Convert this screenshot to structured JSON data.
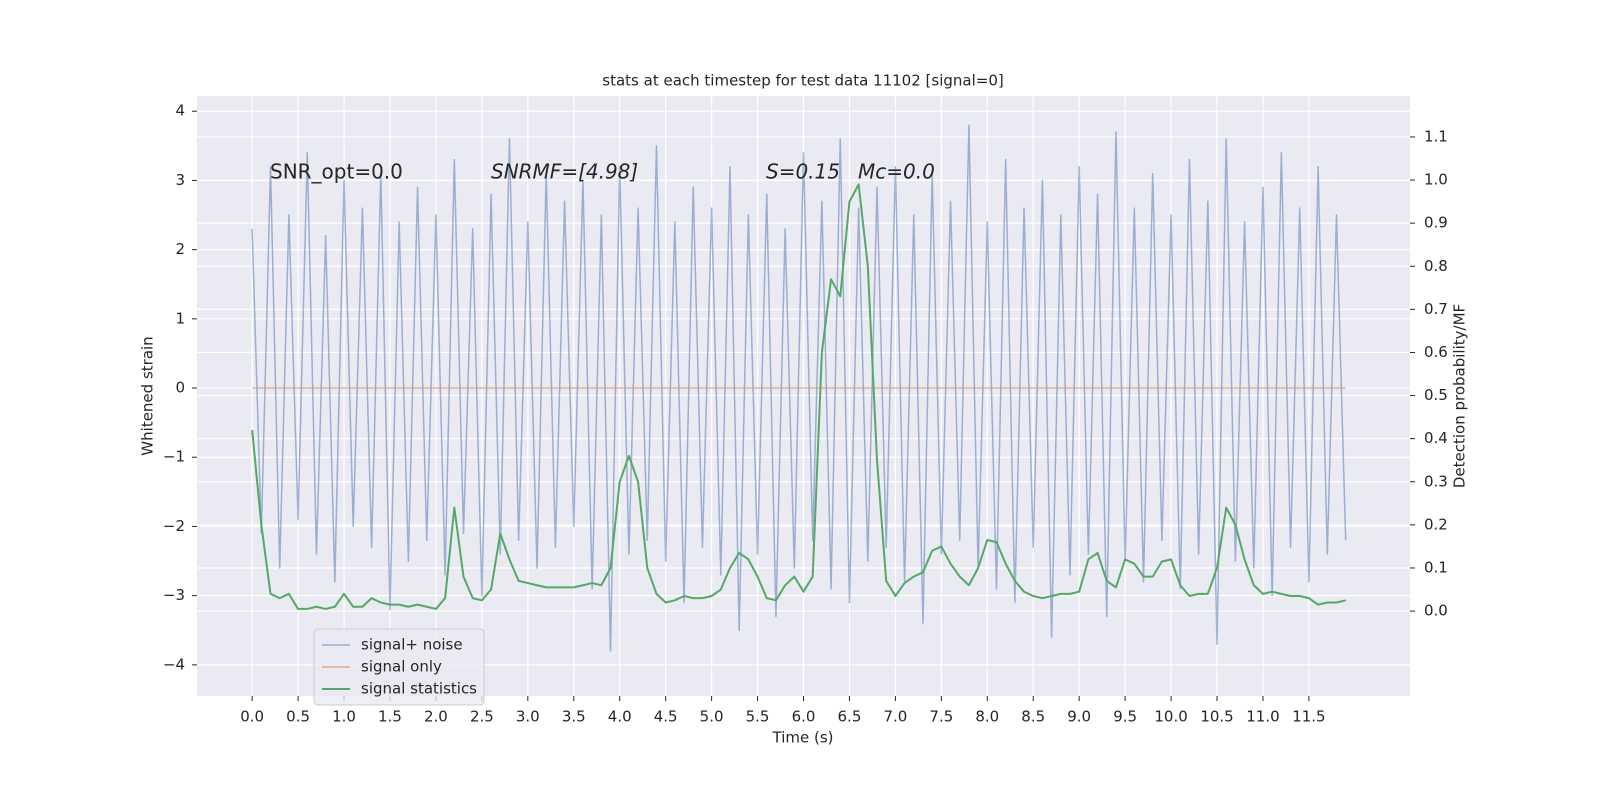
{
  "chart_data": {
    "type": "line",
    "title": "stats at each timestep for test data 11102 [signal=0]",
    "xlabel": "Time (s)",
    "ylabel": "Whitened strain",
    "y2label": "Detection probability/MF",
    "annotations": [
      "SNR_opt=0.0",
      "SNRMF=[4.98]",
      "S=0.15",
      "Mc=0.0"
    ],
    "x": [
      0.0,
      0.1,
      0.2,
      0.3,
      0.4,
      0.5,
      0.6,
      0.7,
      0.8,
      0.9,
      1.0,
      1.1,
      1.2,
      1.3,
      1.4,
      1.5,
      1.6,
      1.7,
      1.8,
      1.9,
      2.0,
      2.1,
      2.2,
      2.3,
      2.4,
      2.5,
      2.6,
      2.7,
      2.8,
      2.9,
      3.0,
      3.1,
      3.2,
      3.3,
      3.4,
      3.5,
      3.6,
      3.7,
      3.8,
      3.9,
      4.0,
      4.1,
      4.2,
      4.3,
      4.4,
      4.5,
      4.6,
      4.7,
      4.8,
      4.9,
      5.0,
      5.1,
      5.2,
      5.3,
      5.4,
      5.5,
      5.6,
      5.7,
      5.8,
      5.9,
      6.0,
      6.1,
      6.2,
      6.3,
      6.4,
      6.5,
      6.6,
      6.7,
      6.8,
      6.9,
      7.0,
      7.1,
      7.2,
      7.3,
      7.4,
      7.5,
      7.6,
      7.7,
      7.8,
      7.9,
      8.0,
      8.1,
      8.2,
      8.3,
      8.4,
      8.5,
      8.6,
      8.7,
      8.8,
      8.9,
      9.0,
      9.1,
      9.2,
      9.3,
      9.4,
      9.5,
      9.6,
      9.7,
      9.8,
      9.9,
      10.0,
      10.1,
      10.2,
      10.3,
      10.4,
      10.5,
      10.6,
      10.7,
      10.8,
      10.9,
      11.0,
      11.1,
      11.2,
      11.3,
      11.4,
      11.5,
      11.6,
      11.7,
      11.8,
      11.9
    ],
    "series": [
      {
        "name": "signal+ noise",
        "color": "#4c72b0",
        "axis": "y",
        "values": [
          2.3,
          -2.1,
          3.2,
          -2.6,
          2.5,
          -1.9,
          3.4,
          -2.4,
          2.2,
          -2.8,
          3.0,
          -2.0,
          2.6,
          -2.3,
          3.1,
          -3.2,
          2.4,
          -2.5,
          2.9,
          -2.2,
          2.5,
          -2.7,
          3.3,
          -2.1,
          2.3,
          -3.0,
          2.8,
          -2.4,
          3.6,
          -2.2,
          2.4,
          -2.6,
          3.1,
          -2.3,
          2.7,
          -2.0,
          3.0,
          -2.9,
          2.5,
          -3.8,
          3.2,
          -2.4,
          2.6,
          -2.2,
          3.5,
          -2.5,
          2.4,
          -3.1,
          2.9,
          -2.3,
          2.6,
          -2.7,
          3.2,
          -3.5,
          2.5,
          -2.4,
          2.8,
          -3.3,
          2.3,
          -2.6,
          3.4,
          -2.2,
          2.7,
          -2.9,
          3.6,
          -3.1,
          2.6,
          -2.5,
          2.9,
          -2.3,
          3.2,
          -2.8,
          2.5,
          -3.4,
          3.1,
          -2.4,
          2.7,
          -2.2,
          3.8,
          -2.6,
          2.4,
          -2.9,
          3.3,
          -3.1,
          2.6,
          -2.3,
          3.0,
          -3.6,
          2.5,
          -2.7,
          3.2,
          -2.4,
          2.8,
          -3.3,
          3.7,
          -2.5,
          2.6,
          -2.8,
          3.1,
          -2.2,
          2.5,
          -2.9,
          3.3,
          -2.4,
          2.7,
          -3.7,
          3.6,
          -2.5,
          2.4,
          -2.6,
          2.9,
          -3.0,
          3.4,
          -2.3,
          2.6,
          -2.8,
          3.2,
          -2.4,
          2.5,
          -2.2
        ]
      },
      {
        "name": "signal only",
        "color": "#dd8452",
        "axis": "y",
        "x": [
          0.0,
          11.9
        ],
        "values": [
          0,
          0
        ]
      },
      {
        "name": "signal statistics",
        "color": "#55a868",
        "axis": "y2",
        "values": [
          0.42,
          0.2,
          0.04,
          0.03,
          0.04,
          0.005,
          0.005,
          0.01,
          0.005,
          0.01,
          0.04,
          0.01,
          0.01,
          0.03,
          0.02,
          0.015,
          0.015,
          0.01,
          0.015,
          0.01,
          0.005,
          0.03,
          0.24,
          0.08,
          0.03,
          0.025,
          0.05,
          0.18,
          0.12,
          0.07,
          0.065,
          0.06,
          0.055,
          0.055,
          0.055,
          0.055,
          0.06,
          0.065,
          0.06,
          0.1,
          0.3,
          0.36,
          0.3,
          0.1,
          0.04,
          0.02,
          0.025,
          0.035,
          0.03,
          0.03,
          0.035,
          0.05,
          0.1,
          0.135,
          0.12,
          0.08,
          0.03,
          0.025,
          0.06,
          0.08,
          0.045,
          0.08,
          0.6,
          0.77,
          0.73,
          0.95,
          0.99,
          0.8,
          0.35,
          0.07,
          0.035,
          0.065,
          0.08,
          0.09,
          0.14,
          0.15,
          0.11,
          0.08,
          0.06,
          0.1,
          0.165,
          0.16,
          0.11,
          0.07,
          0.045,
          0.035,
          0.03,
          0.035,
          0.04,
          0.04,
          0.045,
          0.12,
          0.135,
          0.07,
          0.055,
          0.12,
          0.11,
          0.08,
          0.08,
          0.115,
          0.12,
          0.06,
          0.035,
          0.04,
          0.04,
          0.1,
          0.24,
          0.2,
          0.12,
          0.06,
          0.04,
          0.045,
          0.04,
          0.035,
          0.035,
          0.03,
          0.015,
          0.02,
          0.02,
          0.025
        ]
      }
    ],
    "xlim": [
      -0.6,
      12.6
    ],
    "xticks": [
      {
        "value": 0,
        "label": "0.0"
      },
      0.5,
      {
        "value": 1,
        "label": "1.0"
      },
      1.5,
      {
        "value": 2,
        "label": "2.0"
      },
      2.5,
      {
        "value": 3,
        "label": "3.0"
      },
      3.5,
      {
        "value": 4,
        "label": "4.0"
      },
      4.5,
      {
        "value": 5,
        "label": "5.0"
      },
      5.5,
      {
        "value": 6,
        "label": "6.0"
      },
      6.5,
      {
        "value": 7,
        "label": "7.0"
      },
      7.5,
      {
        "value": 8,
        "label": "8.0"
      },
      8.5,
      {
        "value": 9,
        "label": "9.0"
      },
      9.5,
      {
        "value": 10,
        "label": "10.0"
      },
      10.5,
      {
        "value": 11,
        "label": "11.0"
      },
      11.5
    ],
    "ylim": [
      -4.45,
      4.22
    ],
    "yticks": [
      {
        "value": -4,
        "label": "−4"
      },
      {
        "value": -3,
        "label": "−3"
      },
      {
        "value": -2,
        "label": "−2"
      },
      {
        "value": -1,
        "label": "−1"
      },
      0,
      1,
      2,
      3,
      4
    ],
    "y2lim": [
      -0.197,
      1.195
    ],
    "y2ticks": [
      {
        "value": 0,
        "label": "0.0"
      },
      0.1,
      0.2,
      0.3,
      0.4,
      0.5,
      0.6,
      0.7,
      0.8,
      0.9,
      {
        "value": 1,
        "label": "1.0"
      },
      1.1
    ],
    "grid": true,
    "legend": "lower left"
  }
}
